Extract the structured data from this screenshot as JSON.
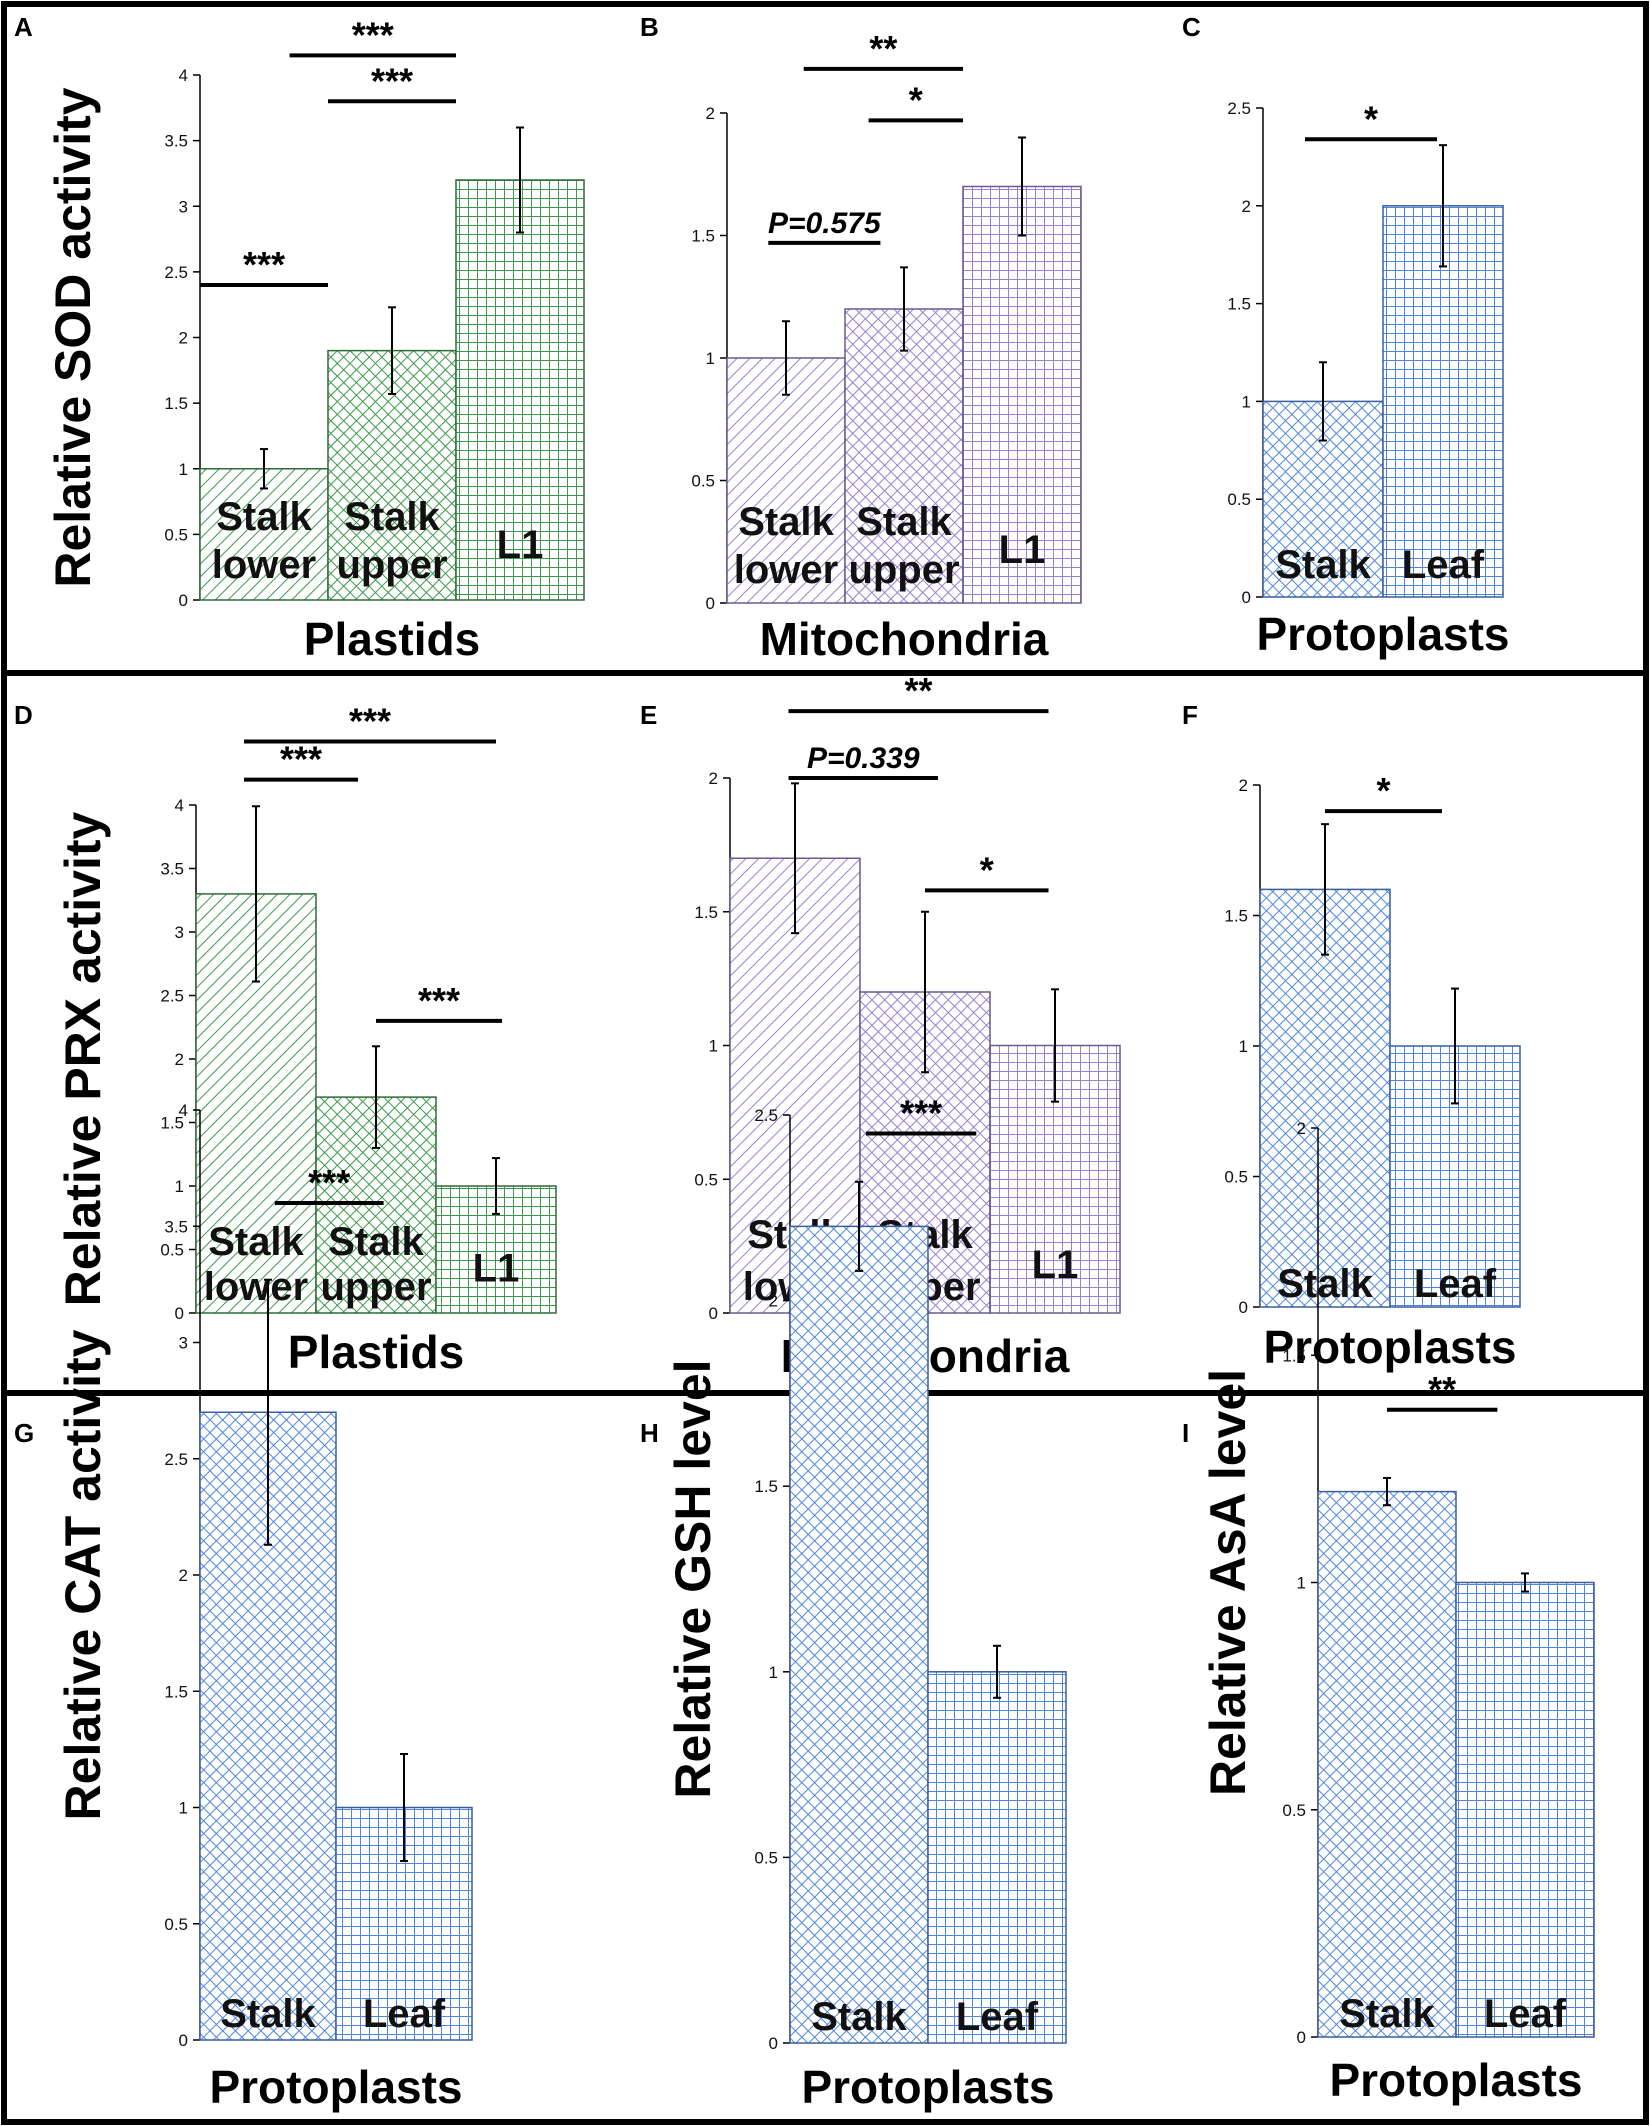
{
  "figure": {
    "colors": {
      "green": "#3d9a4a",
      "purple": "#9b7fd0",
      "blue": "#4f86e0",
      "frame": "#000000"
    }
  },
  "chart_data": [
    {
      "panel": "A",
      "type": "bar",
      "title": "",
      "xlabel": "Plastids",
      "ylabel": "Relative SOD activity",
      "ylim": [
        0,
        4
      ],
      "yticks": [
        "0",
        "0.5",
        "1",
        "1.5",
        "2",
        "2.5",
        "3",
        "3.5",
        "4"
      ],
      "categories": [
        "Stalk lower",
        "Stalk upper",
        "L1"
      ],
      "bar_text": [
        [
          "Stalk",
          "lower"
        ],
        [
          "Stalk",
          "upper"
        ],
        [
          "L1"
        ]
      ],
      "values": [
        1.0,
        1.9,
        3.2
      ],
      "errors": [
        0.15,
        0.33,
        0.4
      ],
      "fills": [
        "green-diag",
        "green-cross",
        "green-grid"
      ],
      "significance": [
        {
          "from": 0,
          "to": 1,
          "label": "***",
          "level": 2.4
        },
        {
          "from": 1,
          "to": 2,
          "label": "***",
          "level": 3.8
        },
        {
          "from": 0.7,
          "to": 2,
          "label": "***",
          "level": 4.15
        }
      ]
    },
    {
      "panel": "B",
      "type": "bar",
      "title": "",
      "xlabel": "Mitochondria",
      "ylabel": "",
      "ylim": [
        0,
        2
      ],
      "yticks": [
        "0",
        "0.5",
        "1",
        "1.5",
        "2"
      ],
      "categories": [
        "Stalk lower",
        "Stalk upper",
        "L1"
      ],
      "bar_text": [
        [
          "Stalk",
          "lower"
        ],
        [
          "Stalk",
          "upper"
        ],
        [
          "L1"
        ]
      ],
      "values": [
        1.0,
        1.2,
        1.7
      ],
      "errors": [
        0.15,
        0.17,
        0.2
      ],
      "fills": [
        "purple-diag",
        "purple-cross",
        "purple-grid"
      ],
      "significance": [
        {
          "from": 0.35,
          "to": 1.3,
          "label": "P=0.575",
          "level": 1.47
        },
        {
          "from": 1.2,
          "to": 2,
          "label": "*",
          "level": 1.97
        },
        {
          "from": 0.65,
          "to": 2,
          "label": "**",
          "level": 2.18
        }
      ]
    },
    {
      "panel": "C",
      "type": "bar",
      "title": "",
      "xlabel": "Protoplasts",
      "ylabel": "",
      "ylim": [
        0,
        2.5
      ],
      "yticks": [
        "0",
        "0.5",
        "1",
        "1.5",
        "2",
        "2.5"
      ],
      "categories": [
        "Stalk",
        "Leaf"
      ],
      "bar_text": [
        [
          "Stalk"
        ],
        [
          "Leaf"
        ]
      ],
      "values": [
        1.0,
        2.0
      ],
      "errors": [
        0.2,
        0.31
      ],
      "fills": [
        "blue-cross",
        "blue-grid"
      ],
      "significance": [
        {
          "from": 0.35,
          "to": 1.45,
          "label": "*",
          "level": 2.34
        }
      ]
    },
    {
      "panel": "D",
      "type": "bar",
      "title": "",
      "xlabel": "Plastids",
      "ylabel": "Relative PRX activity",
      "ylim": [
        0,
        4
      ],
      "yticks": [
        "0",
        "0.5",
        "1",
        "1.5",
        "2",
        "2.5",
        "3",
        "3.5",
        "4"
      ],
      "categories": [
        "Stalk lower",
        "Stalk upper",
        "L1"
      ],
      "bar_text": [
        [
          "Stalk",
          "lower"
        ],
        [
          "Stalk",
          "upper"
        ],
        [
          "L1"
        ]
      ],
      "values": [
        3.3,
        1.7,
        1.0
      ],
      "errors": [
        0.69,
        0.4,
        0.22
      ],
      "fills": [
        "green-diag",
        "green-cross",
        "green-grid"
      ],
      "significance": [
        {
          "from": 1.5,
          "to": 2.55,
          "label": "***",
          "level": 2.3
        },
        {
          "from": 0.4,
          "to": 1.35,
          "label": "***",
          "level": 4.2
        },
        {
          "from": 0.4,
          "to": 2.5,
          "label": "***",
          "level": 4.5
        }
      ]
    },
    {
      "panel": "E",
      "type": "bar",
      "title": "",
      "xlabel": "Mitochondria",
      "ylabel": "",
      "ylim": [
        0,
        2
      ],
      "yticks": [
        "0",
        "0.5",
        "1",
        "1.5",
        "2"
      ],
      "categories": [
        "Stalk lower",
        "Stalk upper",
        "L1"
      ],
      "bar_text": [
        [
          "Stalk",
          "lower"
        ],
        [
          "Stalk",
          "upper"
        ],
        [
          "L1"
        ]
      ],
      "values": [
        1.7,
        1.2,
        1.0
      ],
      "errors": [
        0.28,
        0.3,
        0.21
      ],
      "fills": [
        "purple-diag",
        "purple-cross",
        "purple-grid"
      ],
      "significance": [
        {
          "from": 1.5,
          "to": 2.45,
          "label": "*",
          "level": 1.58
        },
        {
          "from": 0.45,
          "to": 1.6,
          "label": "P=0.339",
          "level": 2.0
        },
        {
          "from": 0.45,
          "to": 2.45,
          "label": "**",
          "level": 2.25
        }
      ]
    },
    {
      "panel": "F",
      "type": "bar",
      "title": "",
      "xlabel": "Protoplasts",
      "ylabel": "",
      "ylim": [
        0,
        2
      ],
      "yticks": [
        "0",
        "0.5",
        "1",
        "1.5",
        "2"
      ],
      "categories": [
        "Stalk",
        "Leaf"
      ],
      "bar_text": [
        [
          "Stalk"
        ],
        [
          "Leaf"
        ]
      ],
      "values": [
        1.6,
        1.0
      ],
      "errors": [
        0.25,
        0.22
      ],
      "fills": [
        "blue-cross",
        "blue-grid"
      ],
      "significance": [
        {
          "from": 0.5,
          "to": 1.4,
          "label": "*",
          "level": 1.9
        }
      ]
    },
    {
      "panel": "G",
      "type": "bar",
      "title": "",
      "xlabel": "Protoplasts",
      "ylabel": "Relative CAT activity",
      "ylim": [
        0,
        4
      ],
      "yticks": [
        "0",
        "0.5",
        "1",
        "1.5",
        "2",
        "2.5",
        "3",
        "3.5",
        "4"
      ],
      "categories": [
        "Stalk",
        "Leaf"
      ],
      "bar_text": [
        [
          "Stalk"
        ],
        [
          "Leaf"
        ]
      ],
      "values": [
        2.7,
        1.0
      ],
      "errors": [
        0.57,
        0.23
      ],
      "fills": [
        "blue-cross",
        "blue-grid"
      ],
      "significance": [
        {
          "from": 0.55,
          "to": 1.35,
          "label": "***",
          "level": 3.6
        }
      ]
    },
    {
      "panel": "H",
      "type": "bar",
      "title": "",
      "xlabel": "Protoplasts",
      "ylabel": "Relative GSH level",
      "ylim": [
        0,
        2.5
      ],
      "yticks": [
        "0",
        "0.5",
        "1",
        "1.5",
        "2",
        "2.5"
      ],
      "categories": [
        "Stalk",
        "Leaf"
      ],
      "bar_text": [
        [
          "Stalk"
        ],
        [
          "Leaf"
        ]
      ],
      "values": [
        2.2,
        1.0
      ],
      "errors": [
        0.12,
        0.07
      ],
      "fills": [
        "blue-cross",
        "blue-grid"
      ],
      "significance": [
        {
          "from": 0.55,
          "to": 1.35,
          "label": "***",
          "level": 2.45
        }
      ]
    },
    {
      "panel": "I",
      "type": "bar",
      "title": "",
      "xlabel": "Protoplasts",
      "ylabel": "Relative AsA level",
      "ylim": [
        0,
        2
      ],
      "yticks": [
        "0",
        "0.5",
        "1",
        "1.5",
        "2"
      ],
      "categories": [
        "Stalk",
        "Leaf"
      ],
      "bar_text": [
        [
          "Stalk"
        ],
        [
          "Leaf"
        ]
      ],
      "values": [
        1.2,
        1.0
      ],
      "errors": [
        0.03,
        0.02
      ],
      "fills": [
        "blue-cross",
        "blue-grid"
      ],
      "significance": [
        {
          "from": 0.5,
          "to": 1.3,
          "label": "**",
          "level": 1.38
        }
      ]
    }
  ]
}
